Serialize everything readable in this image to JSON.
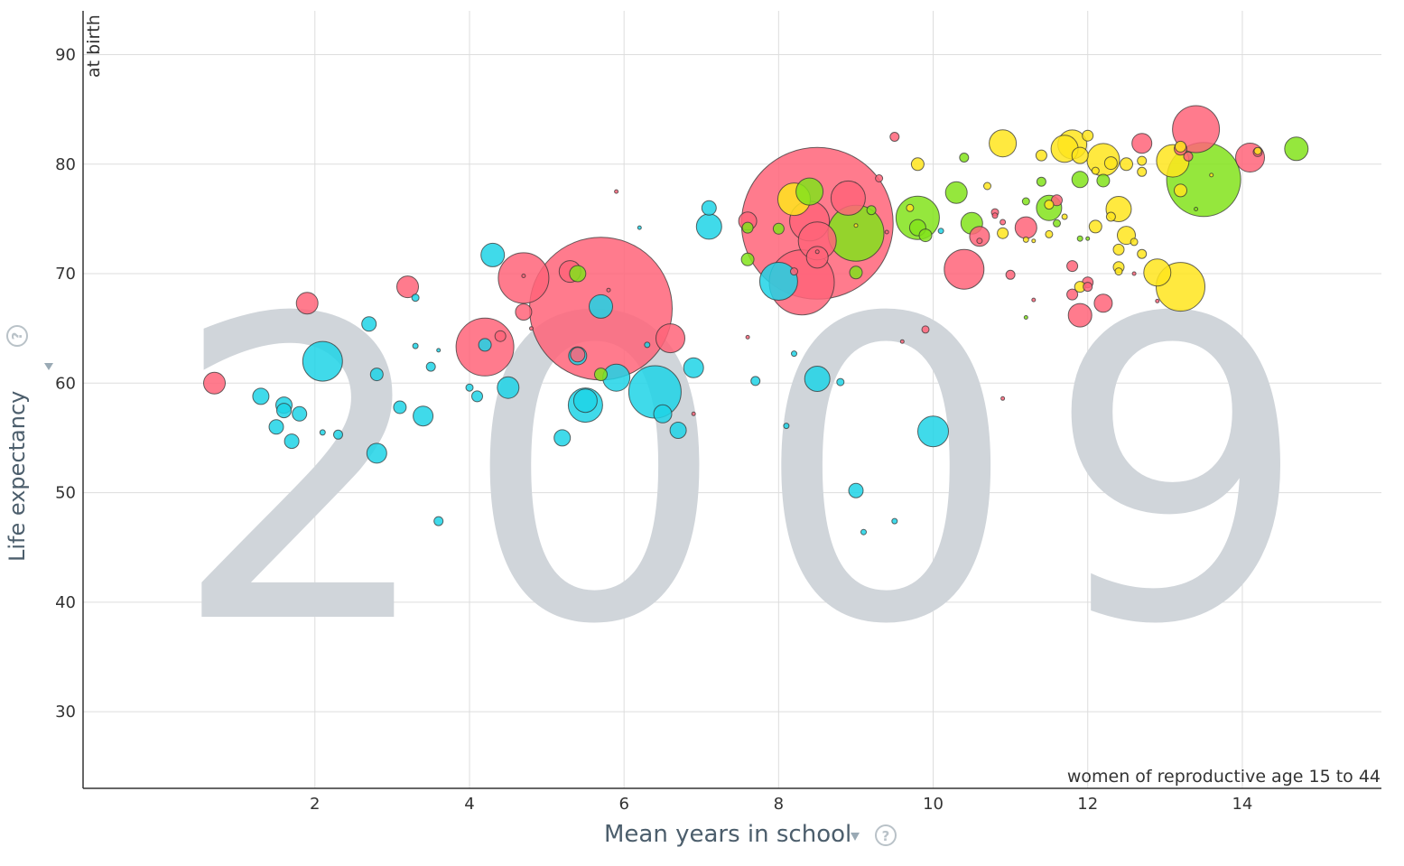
{
  "year_label": "2009",
  "y_axis": {
    "label": "Life expectancy",
    "note": "at birth"
  },
  "x_axis": {
    "label": "Mean years in school",
    "note": "women of reproductive age 15 to 44"
  },
  "help_symbol": "?",
  "colors": {
    "africa": "#1ed3e6",
    "asia": "#ff6479",
    "americas": "#83e31b",
    "europe": "#ffe51d",
    "year_watermark": "#d0d5da",
    "axis_label": "#4c5e6c"
  },
  "chart_data": {
    "type": "scatter",
    "xlabel": "Mean years in school",
    "ylabel": "Life expectancy",
    "xlim": [
      -1,
      15.8
    ],
    "ylim": [
      23,
      94
    ],
    "x_ticks": [
      2,
      4,
      6,
      8,
      10,
      12,
      14
    ],
    "y_ticks": [
      30,
      40,
      50,
      60,
      70,
      80,
      90
    ],
    "grid": true,
    "bubble_size_encodes": "population",
    "series": [
      {
        "color": "#1ed3e6",
        "points": [
          {
            "x": 2.1,
            "y": 62.0,
            "r": 22
          },
          {
            "x": 1.3,
            "y": 58.8,
            "r": 9
          },
          {
            "x": 1.6,
            "y": 58.0,
            "r": 9
          },
          {
            "x": 1.6,
            "y": 57.5,
            "r": 8
          },
          {
            "x": 1.8,
            "y": 57.2,
            "r": 8
          },
          {
            "x": 1.5,
            "y": 56.0,
            "r": 8
          },
          {
            "x": 1.7,
            "y": 54.7,
            "r": 8
          },
          {
            "x": 2.1,
            "y": 55.5,
            "r": 3
          },
          {
            "x": 2.3,
            "y": 55.3,
            "r": 5
          },
          {
            "x": 2.7,
            "y": 65.4,
            "r": 8
          },
          {
            "x": 2.8,
            "y": 60.8,
            "r": 7
          },
          {
            "x": 2.8,
            "y": 53.6,
            "r": 11
          },
          {
            "x": 3.1,
            "y": 57.8,
            "r": 7
          },
          {
            "x": 3.3,
            "y": 63.4,
            "r": 3
          },
          {
            "x": 3.3,
            "y": 67.8,
            "r": 4
          },
          {
            "x": 3.4,
            "y": 57.0,
            "r": 11
          },
          {
            "x": 3.5,
            "y": 61.5,
            "r": 5
          },
          {
            "x": 3.6,
            "y": 63.0,
            "r": 2
          },
          {
            "x": 3.6,
            "y": 47.4,
            "r": 5
          },
          {
            "x": 4.0,
            "y": 59.6,
            "r": 4
          },
          {
            "x": 4.1,
            "y": 58.8,
            "r": 6
          },
          {
            "x": 4.2,
            "y": 63.5,
            "r": 7
          },
          {
            "x": 4.3,
            "y": 71.7,
            "r": 13
          },
          {
            "x": 4.5,
            "y": 59.6,
            "r": 12
          },
          {
            "x": 5.2,
            "y": 55.0,
            "r": 9
          },
          {
            "x": 5.4,
            "y": 62.5,
            "r": 10
          },
          {
            "x": 5.5,
            "y": 58.0,
            "r": 19
          },
          {
            "x": 5.5,
            "y": 58.4,
            "r": 13
          },
          {
            "x": 5.7,
            "y": 67.0,
            "r": 13
          },
          {
            "x": 5.9,
            "y": 60.5,
            "r": 15
          },
          {
            "x": 6.2,
            "y": 74.2,
            "r": 2
          },
          {
            "x": 6.3,
            "y": 63.5,
            "r": 3
          },
          {
            "x": 6.4,
            "y": 59.2,
            "r": 29
          },
          {
            "x": 6.5,
            "y": 57.2,
            "r": 10
          },
          {
            "x": 6.7,
            "y": 55.7,
            "r": 9
          },
          {
            "x": 6.9,
            "y": 61.4,
            "r": 11
          },
          {
            "x": 7.1,
            "y": 74.3,
            "r": 14
          },
          {
            "x": 7.1,
            "y": 76.0,
            "r": 8
          },
          {
            "x": 7.7,
            "y": 60.2,
            "r": 5
          },
          {
            "x": 8.0,
            "y": 69.3,
            "r": 21
          },
          {
            "x": 8.1,
            "y": 56.1,
            "r": 3
          },
          {
            "x": 8.2,
            "y": 62.7,
            "r": 3
          },
          {
            "x": 8.5,
            "y": 60.4,
            "r": 14
          },
          {
            "x": 8.8,
            "y": 60.1,
            "r": 4
          },
          {
            "x": 9.0,
            "y": 50.2,
            "r": 8
          },
          {
            "x": 9.1,
            "y": 46.4,
            "r": 3
          },
          {
            "x": 9.5,
            "y": 47.4,
            "r": 3
          },
          {
            "x": 10.0,
            "y": 55.6,
            "r": 17
          },
          {
            "x": 10.1,
            "y": 73.9,
            "r": 3
          }
        ]
      },
      {
        "color": "#ff6479",
        "points": [
          {
            "x": 0.7,
            "y": 60.0,
            "r": 12
          },
          {
            "x": 1.9,
            "y": 67.3,
            "r": 12
          },
          {
            "x": 3.2,
            "y": 68.8,
            "r": 12
          },
          {
            "x": 4.2,
            "y": 63.3,
            "r": 32
          },
          {
            "x": 4.4,
            "y": 64.3,
            "r": 6
          },
          {
            "x": 4.7,
            "y": 69.6,
            "r": 28
          },
          {
            "x": 4.7,
            "y": 66.5,
            "r": 9
          },
          {
            "x": 4.7,
            "y": 69.8,
            "r": 2
          },
          {
            "x": 4.8,
            "y": 65.0,
            "r": 2
          },
          {
            "x": 5.3,
            "y": 70.2,
            "r": 12
          },
          {
            "x": 5.7,
            "y": 66.8,
            "r": 79
          },
          {
            "x": 5.4,
            "y": 62.6,
            "r": 8
          },
          {
            "x": 5.8,
            "y": 68.5,
            "r": 2
          },
          {
            "x": 5.9,
            "y": 77.5,
            "r": 2
          },
          {
            "x": 6.6,
            "y": 64.1,
            "r": 16
          },
          {
            "x": 6.9,
            "y": 57.2,
            "r": 2
          },
          {
            "x": 7.6,
            "y": 74.8,
            "r": 10
          },
          {
            "x": 7.6,
            "y": 64.2,
            "r": 2
          },
          {
            "x": 8.5,
            "y": 74.6,
            "r": 84
          },
          {
            "x": 8.3,
            "y": 69.2,
            "r": 36
          },
          {
            "x": 8.4,
            "y": 74.8,
            "r": 22
          },
          {
            "x": 8.5,
            "y": 73.0,
            "r": 21
          },
          {
            "x": 8.5,
            "y": 71.5,
            "r": 12
          },
          {
            "x": 8.9,
            "y": 76.9,
            "r": 19
          },
          {
            "x": 8.2,
            "y": 70.2,
            "r": 4
          },
          {
            "x": 8.5,
            "y": 72.0,
            "r": 2
          },
          {
            "x": 9.3,
            "y": 78.7,
            "r": 4
          },
          {
            "x": 9.4,
            "y": 73.8,
            "r": 2
          },
          {
            "x": 9.5,
            "y": 82.5,
            "r": 5
          },
          {
            "x": 9.6,
            "y": 63.8,
            "r": 2
          },
          {
            "x": 9.9,
            "y": 64.9,
            "r": 4
          },
          {
            "x": 10.4,
            "y": 70.4,
            "r": 22
          },
          {
            "x": 10.6,
            "y": 73.4,
            "r": 11
          },
          {
            "x": 10.6,
            "y": 73.0,
            "r": 3
          },
          {
            "x": 10.8,
            "y": 75.6,
            "r": 4
          },
          {
            "x": 10.8,
            "y": 75.3,
            "r": 3
          },
          {
            "x": 10.9,
            "y": 58.6,
            "r": 2
          },
          {
            "x": 10.9,
            "y": 74.7,
            "r": 3
          },
          {
            "x": 11.0,
            "y": 69.9,
            "r": 5
          },
          {
            "x": 11.2,
            "y": 74.2,
            "r": 12
          },
          {
            "x": 11.3,
            "y": 67.6,
            "r": 2
          },
          {
            "x": 11.6,
            "y": 76.7,
            "r": 6
          },
          {
            "x": 11.8,
            "y": 70.7,
            "r": 6
          },
          {
            "x": 11.8,
            "y": 68.1,
            "r": 6
          },
          {
            "x": 11.9,
            "y": 66.2,
            "r": 13
          },
          {
            "x": 12.0,
            "y": 69.2,
            "r": 6
          },
          {
            "x": 12.0,
            "y": 68.8,
            "r": 5
          },
          {
            "x": 12.2,
            "y": 67.3,
            "r": 10
          },
          {
            "x": 12.6,
            "y": 70.0,
            "r": 2
          },
          {
            "x": 12.7,
            "y": 81.9,
            "r": 11
          },
          {
            "x": 12.9,
            "y": 67.5,
            "r": 2
          },
          {
            "x": 13.4,
            "y": 83.2,
            "r": 26
          },
          {
            "x": 13.2,
            "y": 81.4,
            "r": 7
          },
          {
            "x": 13.3,
            "y": 80.7,
            "r": 5
          },
          {
            "x": 14.1,
            "y": 80.6,
            "r": 16
          },
          {
            "x": 14.2,
            "y": 81.1,
            "r": 5
          }
        ]
      },
      {
        "color": "#83e31b",
        "points": [
          {
            "x": 5.4,
            "y": 70.0,
            "r": 9
          },
          {
            "x": 5.7,
            "y": 60.8,
            "r": 7
          },
          {
            "x": 7.6,
            "y": 71.3,
            "r": 7
          },
          {
            "x": 7.6,
            "y": 74.2,
            "r": 6
          },
          {
            "x": 8.0,
            "y": 74.1,
            "r": 6
          },
          {
            "x": 8.4,
            "y": 77.5,
            "r": 15
          },
          {
            "x": 9.0,
            "y": 73.7,
            "r": 31
          },
          {
            "x": 9.0,
            "y": 70.1,
            "r": 7
          },
          {
            "x": 9.2,
            "y": 75.8,
            "r": 5
          },
          {
            "x": 9.8,
            "y": 75.1,
            "r": 24
          },
          {
            "x": 9.8,
            "y": 74.2,
            "r": 9
          },
          {
            "x": 9.9,
            "y": 73.5,
            "r": 7
          },
          {
            "x": 10.3,
            "y": 77.4,
            "r": 12
          },
          {
            "x": 10.4,
            "y": 80.6,
            "r": 5
          },
          {
            "x": 10.5,
            "y": 74.6,
            "r": 12
          },
          {
            "x": 11.2,
            "y": 66.0,
            "r": 2
          },
          {
            "x": 11.2,
            "y": 76.6,
            "r": 4
          },
          {
            "x": 11.4,
            "y": 78.4,
            "r": 5
          },
          {
            "x": 11.5,
            "y": 76.0,
            "r": 14
          },
          {
            "x": 11.6,
            "y": 74.6,
            "r": 4
          },
          {
            "x": 11.9,
            "y": 73.2,
            "r": 3
          },
          {
            "x": 11.9,
            "y": 78.6,
            "r": 9
          },
          {
            "x": 12.0,
            "y": 73.2,
            "r": 2
          },
          {
            "x": 12.2,
            "y": 78.5,
            "r": 7
          },
          {
            "x": 13.5,
            "y": 78.6,
            "r": 41
          },
          {
            "x": 14.7,
            "y": 81.4,
            "r": 13
          },
          {
            "x": 13.4,
            "y": 75.9,
            "r": 2
          }
        ]
      },
      {
        "color": "#ffe51d",
        "points": [
          {
            "x": 8.2,
            "y": 76.8,
            "r": 18
          },
          {
            "x": 9.0,
            "y": 74.4,
            "r": 2
          },
          {
            "x": 9.7,
            "y": 76.0,
            "r": 4
          },
          {
            "x": 9.8,
            "y": 80.0,
            "r": 7
          },
          {
            "x": 10.7,
            "y": 78.0,
            "r": 4
          },
          {
            "x": 10.9,
            "y": 81.9,
            "r": 15
          },
          {
            "x": 10.9,
            "y": 73.7,
            "r": 6
          },
          {
            "x": 11.2,
            "y": 73.1,
            "r": 3
          },
          {
            "x": 11.3,
            "y": 73.0,
            "r": 2
          },
          {
            "x": 11.4,
            "y": 80.8,
            "r": 6
          },
          {
            "x": 11.5,
            "y": 73.6,
            "r": 4
          },
          {
            "x": 11.5,
            "y": 76.3,
            "r": 5
          },
          {
            "x": 11.7,
            "y": 75.2,
            "r": 3
          },
          {
            "x": 11.7,
            "y": 81.4,
            "r": 15
          },
          {
            "x": 11.8,
            "y": 81.8,
            "r": 16
          },
          {
            "x": 11.9,
            "y": 80.8,
            "r": 9
          },
          {
            "x": 11.9,
            "y": 68.8,
            "r": 6
          },
          {
            "x": 12.0,
            "y": 82.6,
            "r": 6
          },
          {
            "x": 12.1,
            "y": 74.3,
            "r": 7
          },
          {
            "x": 12.1,
            "y": 79.4,
            "r": 4
          },
          {
            "x": 12.2,
            "y": 80.4,
            "r": 18
          },
          {
            "x": 12.3,
            "y": 80.1,
            "r": 7
          },
          {
            "x": 12.4,
            "y": 75.9,
            "r": 14
          },
          {
            "x": 12.4,
            "y": 72.2,
            "r": 6
          },
          {
            "x": 12.4,
            "y": 70.6,
            "r": 6
          },
          {
            "x": 12.4,
            "y": 70.2,
            "r": 4
          },
          {
            "x": 12.5,
            "y": 73.5,
            "r": 10
          },
          {
            "x": 12.5,
            "y": 80.0,
            "r": 7
          },
          {
            "x": 12.6,
            "y": 72.9,
            "r": 4
          },
          {
            "x": 12.7,
            "y": 79.3,
            "r": 5
          },
          {
            "x": 12.7,
            "y": 80.3,
            "r": 5
          },
          {
            "x": 12.7,
            "y": 71.8,
            "r": 5
          },
          {
            "x": 12.3,
            "y": 75.2,
            "r": 5
          },
          {
            "x": 12.9,
            "y": 70.1,
            "r": 15
          },
          {
            "x": 13.1,
            "y": 80.3,
            "r": 18
          },
          {
            "x": 13.2,
            "y": 68.8,
            "r": 27
          },
          {
            "x": 13.2,
            "y": 77.6,
            "r": 7
          },
          {
            "x": 13.2,
            "y": 81.6,
            "r": 6
          },
          {
            "x": 13.6,
            "y": 79.0,
            "r": 2
          },
          {
            "x": 14.2,
            "y": 81.2,
            "r": 4
          }
        ]
      }
    ]
  }
}
